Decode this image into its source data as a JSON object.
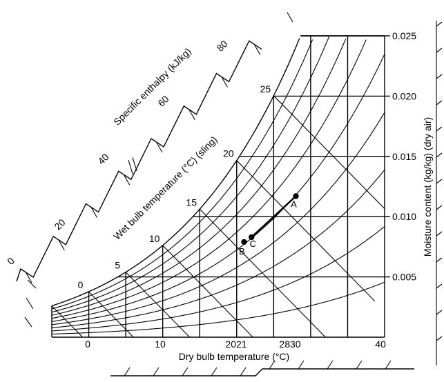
{
  "chart_data": {
    "type": "line",
    "title": "",
    "xlabel": "Dry bulb temperature (°C)",
    "ylabel": "Moisture content (kg/kg) (dry air)",
    "wetbulb_label": "Wet bulb temperature (°C) (sling)",
    "enthalpy_label": "Specific enthalpy (kJ/kg)",
    "xlim": [
      -5,
      40
    ],
    "ylim": [
      0,
      0.025
    ],
    "x_ticks": [
      "0",
      "10",
      "40"
    ],
    "x_ticks_extra": [
      "2021",
      "2830"
    ],
    "y_ticks": [
      "0.005",
      "0.010",
      "0.015",
      "0.020",
      "0.025"
    ],
    "y_tick_values": [
      0.005,
      0.01,
      0.015,
      0.02,
      0.025
    ],
    "wetbulb_ticks": [
      "0",
      "5",
      "10",
      "15",
      "20",
      "25"
    ],
    "wetbulb_values": [
      0,
      5,
      10,
      15,
      20,
      25
    ],
    "enthalpy_ticks": [
      "0",
      "20",
      "40",
      "60",
      "80"
    ],
    "grid": true,
    "rh_curves": [
      0.1,
      0.2,
      0.3,
      0.4,
      0.5,
      0.6,
      0.7,
      0.8,
      0.9,
      1.0
    ],
    "points": [
      {
        "label": "A",
        "x": 28,
        "y": 0.0117
      },
      {
        "label": "B",
        "x": 21,
        "y": 0.0079
      },
      {
        "label": "C",
        "x": 22,
        "y": 0.0083
      }
    ],
    "process_line": [
      "C",
      "A"
    ]
  }
}
